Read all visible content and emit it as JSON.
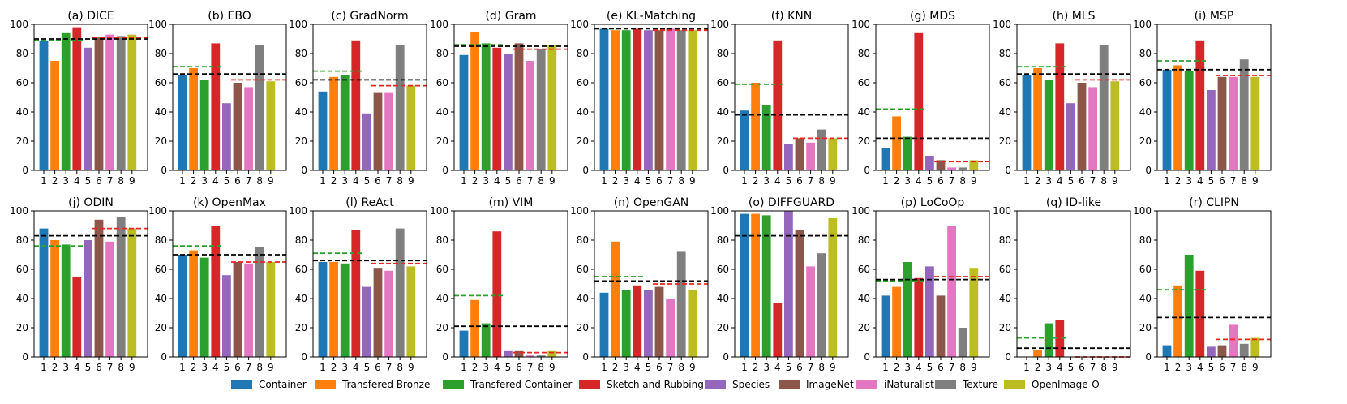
{
  "figure": {
    "legend": [
      "Container",
      "Transfered Bronze",
      "Transfered Container",
      "Sketch and Rubbing",
      "Species",
      "ImageNet-O",
      "iNaturalist",
      "Texture",
      "OpenImage-O"
    ],
    "colors": [
      "#1f77b4",
      "#ff7f0e",
      "#2ca02c",
      "#d62728",
      "#9467bd",
      "#8c564b",
      "#e377c2",
      "#7f7f7f",
      "#bcbd22"
    ],
    "ref_line_colors": {
      "black": "#000000",
      "green": "#2ca02c",
      "red": "#e8261f"
    }
  },
  "chart_data": [
    {
      "type": "bar",
      "title": "(a) DICE",
      "categories": [
        "1",
        "2",
        "3",
        "4",
        "5",
        "6",
        "7",
        "8",
        "9"
      ],
      "values": [
        89,
        75,
        94,
        98,
        84,
        91,
        93,
        92,
        93
      ],
      "ylim": [
        0,
        100
      ],
      "yticks": [
        0,
        20,
        40,
        60,
        80,
        100
      ],
      "black_line": 90,
      "green_line": 89,
      "red_line": 91
    },
    {
      "type": "bar",
      "title": "(b) EBO",
      "categories": [
        "1",
        "2",
        "3",
        "4",
        "5",
        "6",
        "7",
        "8",
        "9"
      ],
      "values": [
        65,
        70,
        62,
        87,
        46,
        60,
        57,
        86,
        61
      ],
      "ylim": [
        0,
        100
      ],
      "yticks": [
        0,
        20,
        40,
        60,
        80,
        100
      ],
      "black_line": 66,
      "green_line": 71,
      "red_line": 62
    },
    {
      "type": "bar",
      "title": "(c) GradNorm",
      "categories": [
        "1",
        "2",
        "3",
        "4",
        "5",
        "6",
        "7",
        "8",
        "9"
      ],
      "values": [
        54,
        64,
        65,
        89,
        39,
        53,
        53,
        86,
        58
      ],
      "ylim": [
        0,
        100
      ],
      "yticks": [
        0,
        20,
        40,
        60,
        80,
        100
      ],
      "black_line": 62,
      "green_line": 68,
      "red_line": 58
    },
    {
      "type": "bar",
      "title": "(d) Gram",
      "categories": [
        "1",
        "2",
        "3",
        "4",
        "5",
        "6",
        "7",
        "8",
        "9"
      ],
      "values": [
        79,
        95,
        87,
        84,
        80,
        87,
        75,
        83,
        86
      ],
      "ylim": [
        0,
        100
      ],
      "yticks": [
        0,
        20,
        40,
        60,
        80,
        100
      ],
      "black_line": 85,
      "green_line": 86,
      "red_line": 83
    },
    {
      "type": "bar",
      "title": "(e) KL-Matching",
      "categories": [
        "1",
        "2",
        "3",
        "4",
        "5",
        "6",
        "7",
        "8",
        "9"
      ],
      "values": [
        97,
        96,
        96,
        97,
        96,
        96,
        97,
        96,
        96
      ],
      "ylim": [
        0,
        100
      ],
      "yticks": [
        0,
        20,
        40,
        60,
        80,
        100
      ],
      "black_line": 97,
      "green_line": 97,
      "red_line": 96
    },
    {
      "type": "bar",
      "title": "(f) KNN",
      "categories": [
        "1",
        "2",
        "3",
        "4",
        "5",
        "6",
        "7",
        "8",
        "9"
      ],
      "values": [
        41,
        60,
        45,
        89,
        18,
        22,
        19,
        28,
        22
      ],
      "ylim": [
        0,
        100
      ],
      "yticks": [
        0,
        20,
        40,
        60,
        80,
        100
      ],
      "black_line": 38,
      "green_line": 59,
      "red_line": 22
    },
    {
      "type": "bar",
      "title": "(g) MDS",
      "categories": [
        "1",
        "2",
        "3",
        "4",
        "5",
        "6",
        "7",
        "8",
        "9"
      ],
      "values": [
        15,
        37,
        23,
        94,
        10,
        7,
        2,
        2,
        7
      ],
      "ylim": [
        0,
        100
      ],
      "yticks": [
        0,
        20,
        40,
        60,
        80,
        100
      ],
      "black_line": 22,
      "green_line": 42,
      "red_line": 6
    },
    {
      "type": "bar",
      "title": "(h) MLS",
      "categories": [
        "1",
        "2",
        "3",
        "4",
        "5",
        "6",
        "7",
        "8",
        "9"
      ],
      "values": [
        65,
        70,
        62,
        87,
        46,
        60,
        57,
        86,
        61
      ],
      "ylim": [
        0,
        100
      ],
      "yticks": [
        0,
        20,
        40,
        60,
        80,
        100
      ],
      "black_line": 66,
      "green_line": 71,
      "red_line": 62
    },
    {
      "type": "bar",
      "title": "(i) MSP",
      "categories": [
        "1",
        "2",
        "3",
        "4",
        "5",
        "6",
        "7",
        "8",
        "9"
      ],
      "values": [
        69,
        72,
        68,
        89,
        55,
        64,
        64,
        76,
        64
      ],
      "ylim": [
        0,
        100
      ],
      "yticks": [
        0,
        20,
        40,
        60,
        80,
        100
      ],
      "black_line": 69,
      "green_line": 75,
      "red_line": 65
    },
    {
      "type": "bar",
      "title": "(j) ODIN",
      "categories": [
        "1",
        "2",
        "3",
        "4",
        "5",
        "6",
        "7",
        "8",
        "9"
      ],
      "values": [
        88,
        80,
        77,
        55,
        80,
        94,
        79,
        96,
        88
      ],
      "ylim": [
        0,
        100
      ],
      "yticks": [
        0,
        20,
        40,
        60,
        80,
        100
      ],
      "black_line": 83,
      "green_line": 76,
      "red_line": 88
    },
    {
      "type": "bar",
      "title": "(k) OpenMax",
      "categories": [
        "1",
        "2",
        "3",
        "4",
        "5",
        "6",
        "7",
        "8",
        "9"
      ],
      "values": [
        70,
        73,
        68,
        90,
        56,
        65,
        64,
        75,
        65
      ],
      "ylim": [
        0,
        100
      ],
      "yticks": [
        0,
        20,
        40,
        60,
        80,
        100
      ],
      "black_line": 70,
      "green_line": 76,
      "red_line": 65
    },
    {
      "type": "bar",
      "title": "(l) ReAct",
      "categories": [
        "1",
        "2",
        "3",
        "4",
        "5",
        "6",
        "7",
        "8",
        "9"
      ],
      "values": [
        65,
        65,
        64,
        87,
        48,
        61,
        59,
        88,
        62
      ],
      "ylim": [
        0,
        100
      ],
      "yticks": [
        0,
        20,
        40,
        60,
        80,
        100
      ],
      "black_line": 66,
      "green_line": 71,
      "red_line": 64
    },
    {
      "type": "bar",
      "title": "(m) VIM",
      "categories": [
        "1",
        "2",
        "3",
        "4",
        "5",
        "6",
        "7",
        "8",
        "9"
      ],
      "values": [
        18,
        39,
        23,
        86,
        4,
        4,
        1,
        1,
        4
      ],
      "ylim": [
        0,
        100
      ],
      "yticks": [
        0,
        20,
        40,
        60,
        80,
        100
      ],
      "black_line": 21,
      "green_line": 42,
      "red_line": 3
    },
    {
      "type": "bar",
      "title": "(n) OpenGAN",
      "categories": [
        "1",
        "2",
        "3",
        "4",
        "5",
        "6",
        "7",
        "8",
        "9"
      ],
      "values": [
        44,
        79,
        46,
        49,
        46,
        48,
        40,
        72,
        46
      ],
      "ylim": [
        0,
        100
      ],
      "yticks": [
        0,
        20,
        40,
        60,
        80,
        100
      ],
      "black_line": 52,
      "green_line": 55,
      "red_line": 50
    },
    {
      "type": "bar",
      "title": "(o) DIFFGUARD",
      "categories": [
        "1",
        "2",
        "3",
        "4",
        "5",
        "6",
        "7",
        "8",
        "9"
      ],
      "values": [
        98,
        98,
        97,
        37,
        100,
        87,
        62,
        71,
        95
      ],
      "ylim": [
        0,
        100
      ],
      "yticks": [
        0,
        20,
        40,
        60,
        80,
        100
      ],
      "black_line": 83,
      "green_line": 83,
      "red_line": 83
    },
    {
      "type": "bar",
      "title": "(p) LoCoOp",
      "categories": [
        "1",
        "2",
        "3",
        "4",
        "5",
        "6",
        "7",
        "8",
        "9"
      ],
      "values": [
        42,
        48,
        65,
        54,
        62,
        42,
        90,
        20,
        61
      ],
      "ylim": [
        0,
        100
      ],
      "yticks": [
        0,
        20,
        40,
        60,
        80,
        100
      ],
      "black_line": 53,
      "green_line": 52,
      "red_line": 55
    },
    {
      "type": "bar",
      "title": "(q) ID-like",
      "categories": [
        "1",
        "2",
        "3",
        "4",
        "5",
        "6",
        "7",
        "8",
        "9"
      ],
      "values": [
        0,
        5,
        23,
        25,
        0,
        0,
        0,
        0,
        0
      ],
      "ylim": [
        0,
        100
      ],
      "yticks": [
        0,
        20,
        40,
        60,
        80,
        100
      ],
      "black_line": 6,
      "green_line": 13,
      "red_line": 0
    },
    {
      "type": "bar",
      "title": "(r) CLIPN",
      "categories": [
        "1",
        "2",
        "3",
        "4",
        "5",
        "6",
        "7",
        "8",
        "9"
      ],
      "values": [
        8,
        49,
        70,
        59,
        7,
        8,
        22,
        9,
        13
      ],
      "ylim": [
        0,
        100
      ],
      "yticks": [
        0,
        20,
        40,
        60,
        80,
        100
      ],
      "black_line": 27,
      "green_line": 46,
      "red_line": 12
    }
  ]
}
